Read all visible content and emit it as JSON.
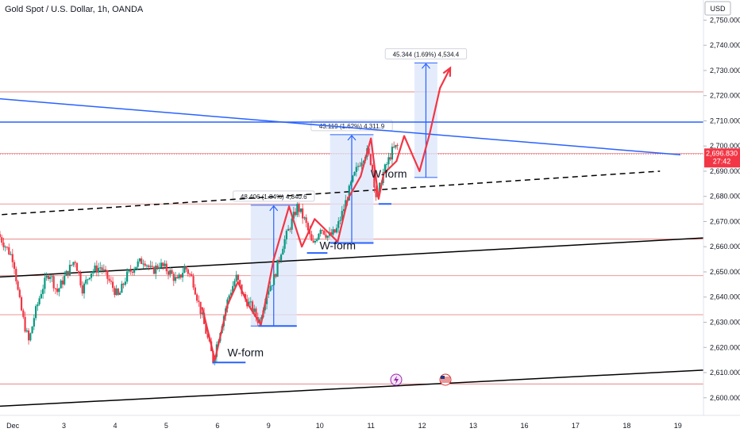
{
  "header": {
    "title": "Gold Spot / U.S. Dollar, 1h, OANDA"
  },
  "axis": {
    "currency": "USD"
  },
  "price_badge": {
    "price": "2,696.830",
    "countdown": "27:42",
    "color": "#f23645"
  },
  "colors": {
    "up": "#089981",
    "down": "#f23645",
    "wpath": "#f23645",
    "trend": "#2962ff",
    "measure_fill": "#dbe6fb",
    "hline": "#e57373"
  },
  "icons": [
    "lightning-event-icon",
    "us-flag-icon"
  ],
  "chart_data": {
    "type": "candlestick",
    "title": "Gold Spot / U.S. Dollar, 1h, OANDA",
    "ylim": [
      2593,
      2758
    ],
    "xlim": [
      0,
      27.5
    ],
    "y_ticks": [
      "2,600.000",
      "2,610.000",
      "2,620.000",
      "2,630.000",
      "2,640.000",
      "2,650.000",
      "2,660.000",
      "2,670.000",
      "2,680.000",
      "2,690.000",
      "2,700.000",
      "2,710.000",
      "2,720.000",
      "2,730.000",
      "2,740.000",
      "2,750.000"
    ],
    "x_ticks": [
      {
        "label": "Dec",
        "x": 0.5
      },
      {
        "label": "3",
        "x": 2.5
      },
      {
        "label": "4",
        "x": 4.5
      },
      {
        "label": "5",
        "x": 6.5
      },
      {
        "label": "6",
        "x": 8.5
      },
      {
        "label": "9",
        "x": 10.5
      },
      {
        "label": "10",
        "x": 12.5
      },
      {
        "label": "11",
        "x": 14.5
      },
      {
        "label": "12",
        "x": 16.5
      },
      {
        "label": "13",
        "x": 18.5
      },
      {
        "label": "16",
        "x": 20.5
      },
      {
        "label": "17",
        "x": 22.5
      },
      {
        "label": "18",
        "x": 24.5
      },
      {
        "label": "19",
        "x": 26.5
      }
    ],
    "candle_path": [
      [
        0,
        2665
      ],
      [
        0.3,
        2660
      ],
      [
        0.6,
        2655
      ],
      [
        0.8,
        2640
      ],
      [
        1.0,
        2630
      ],
      [
        1.2,
        2622
      ],
      [
        1.4,
        2632
      ],
      [
        1.7,
        2643
      ],
      [
        2.0,
        2650
      ],
      [
        2.3,
        2642
      ],
      [
        2.6,
        2648
      ],
      [
        3.0,
        2655
      ],
      [
        3.3,
        2643
      ],
      [
        3.6,
        2650
      ],
      [
        4.0,
        2652
      ],
      [
        4.3,
        2647
      ],
      [
        4.7,
        2640
      ],
      [
        5.0,
        2648
      ],
      [
        5.3,
        2652
      ],
      [
        5.7,
        2655
      ],
      [
        6.0,
        2650
      ],
      [
        6.3,
        2653
      ],
      [
        6.7,
        2650
      ],
      [
        7.0,
        2646
      ],
      [
        7.3,
        2652
      ],
      [
        7.6,
        2647
      ],
      [
        7.9,
        2635
      ],
      [
        8.2,
        2623
      ],
      [
        8.4,
        2615
      ],
      [
        8.7,
        2628
      ],
      [
        9.0,
        2640
      ],
      [
        9.3,
        2648
      ],
      [
        9.6,
        2640
      ],
      [
        9.9,
        2636
      ],
      [
        10.2,
        2630
      ],
      [
        10.5,
        2642
      ],
      [
        10.8,
        2648
      ],
      [
        11.1,
        2660
      ],
      [
        11.4,
        2668
      ],
      [
        11.7,
        2676
      ],
      [
        12.0,
        2670
      ],
      [
        12.3,
        2660
      ],
      [
        12.6,
        2668
      ],
      [
        12.9,
        2664
      ],
      [
        13.2,
        2666
      ],
      [
        13.5,
        2675
      ],
      [
        13.8,
        2685
      ],
      [
        14.1,
        2693
      ],
      [
        14.4,
        2698
      ],
      [
        14.6,
        2693
      ],
      [
        14.8,
        2678
      ],
      [
        15.0,
        2688
      ],
      [
        15.2,
        2693
      ],
      [
        15.4,
        2698
      ],
      [
        15.6,
        2700
      ]
    ],
    "horizontal_levels": [
      2605.5,
      2633,
      2648.5,
      2663,
      2677,
      2697,
      2721.5
    ],
    "current_price": 2696.83,
    "current_price_label": "2,696.830",
    "countdown": "27:42",
    "trendlines": [
      {
        "kind": "resistance-descending",
        "color": "#2962ff",
        "from": [
          -0.3,
          2719
        ],
        "to": [
          26.6,
          2696.5
        ]
      },
      {
        "kind": "horizontal",
        "color": "#2962ff",
        "from": [
          -0.3,
          2709.5
        ],
        "to": [
          27.5,
          2709.5
        ]
      },
      {
        "kind": "support-upper",
        "color": "#000000",
        "from": [
          -0.3,
          2647.8
        ],
        "to": [
          27.5,
          2663.5
        ]
      },
      {
        "kind": "support-lower",
        "color": "#000000",
        "from": [
          -0.3,
          2596.5
        ],
        "to": [
          27.5,
          2611
        ]
      },
      {
        "kind": "dashed",
        "color": "#000000",
        "from": [
          -0.3,
          2672.5
        ],
        "to": [
          25.8,
          2690
        ]
      }
    ],
    "w_path": [
      [
        7.9,
        2636
      ],
      [
        8.4,
        2615
      ],
      [
        8.9,
        2637
      ],
      [
        9.3,
        2646
      ],
      [
        9.7,
        2637
      ],
      [
        10.2,
        2629
      ],
      [
        10.7,
        2655
      ],
      [
        11.3,
        2676
      ],
      [
        11.8,
        2660
      ],
      [
        12.3,
        2671
      ],
      [
        12.7,
        2667
      ],
      [
        13.2,
        2662
      ],
      [
        13.6,
        2679
      ],
      [
        14.1,
        2688
      ],
      [
        14.5,
        2703
      ],
      [
        14.8,
        2679
      ],
      [
        15.0,
        2689
      ],
      [
        15.5,
        2694
      ],
      [
        15.8,
        2704
      ],
      [
        16.4,
        2690
      ],
      [
        16.8,
        2705
      ],
      [
        17.2,
        2723
      ],
      [
        17.6,
        2731
      ]
    ],
    "w_path_arrow_end": [
      17.6,
      2731
    ],
    "annotations": [
      {
        "text": "W-form",
        "x": 9.6,
        "y": 2616.5
      },
      {
        "text": "W-form",
        "x": 13.2,
        "y": 2659
      },
      {
        "text": "W-form",
        "x": 15.2,
        "y": 2687.5
      }
    ],
    "base_lines": [
      {
        "x1": 8.3,
        "x2": 9.6,
        "y": 2614
      },
      {
        "x1": 10.1,
        "x2": 11.6,
        "y": 2628.5
      },
      {
        "x1": 12.0,
        "x2": 12.8,
        "y": 2657.5
      },
      {
        "x1": 12.9,
        "x2": 14.6,
        "y": 2661.5
      },
      {
        "x1": 14.8,
        "x2": 15.3,
        "y": 2677
      }
    ],
    "measures": [
      {
        "x1": 9.8,
        "x2": 11.6,
        "y1": 2628.5,
        "y2": 2676.5,
        "label": "48.406 (1.84%) 4,840.6"
      },
      {
        "x1": 12.9,
        "x2": 14.6,
        "y1": 2661.5,
        "y2": 2704.5,
        "label": "43.119 (1.62%) 4,311.9"
      },
      {
        "x1": 16.2,
        "x2": 17.1,
        "y1": 2687.5,
        "y2": 2733,
        "label": "45.344 (1.69%) 4,534.4"
      }
    ]
  }
}
